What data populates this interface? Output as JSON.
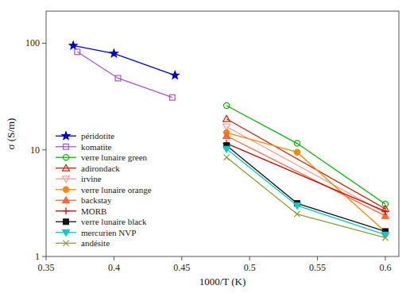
{
  "chart_data": {
    "type": "line",
    "xlabel": "1000/T (K)",
    "ylabel": "σ (S/m)",
    "xlim": [
      0.35,
      0.61
    ],
    "ylim": [
      1,
      200
    ],
    "xticks": [
      0.35,
      0.4,
      0.45,
      0.5,
      0.55,
      0.6
    ],
    "yticks": [
      1,
      10,
      100
    ],
    "log": "y",
    "grid": false,
    "legend": "lower left",
    "series": [
      {
        "name": "péridotite",
        "color": "#0000cc",
        "marker": "star",
        "x": [
          0.37,
          0.4,
          0.445
        ],
        "values": [
          95,
          80,
          50
        ]
      },
      {
        "name": "komatite",
        "color": "#aa55cc",
        "marker": "square-open",
        "x": [
          0.373,
          0.403,
          0.443
        ],
        "values": [
          83,
          47,
          31
        ]
      },
      {
        "name": "verre lunaire green",
        "color": "#00bb00",
        "marker": "circle-open",
        "x": [
          0.483,
          0.535,
          0.6
        ],
        "values": [
          26,
          11.5,
          3.1
        ]
      },
      {
        "name": "adirondack",
        "color": "#cc2200",
        "marker": "triangle-up-open",
        "x": [
          0.483,
          0.6
        ],
        "values": [
          19.5,
          2.8
        ]
      },
      {
        "name": "irvine",
        "color": "#ff9999",
        "marker": "triangle-down-open",
        "x": [
          0.483,
          0.6
        ],
        "values": [
          16.5,
          2.55
        ]
      },
      {
        "name": "verre lunaire orange",
        "color": "#ff8800",
        "marker": "circle",
        "x": [
          0.483,
          0.535,
          0.6
        ],
        "values": [
          14.5,
          9.5,
          1.7
        ]
      },
      {
        "name": "backstay",
        "color": "#ff6633",
        "marker": "triangle-up",
        "x": [
          0.483,
          0.6
        ],
        "values": [
          13.5,
          2.4
        ]
      },
      {
        "name": "MORB",
        "color": "#cc0000",
        "marker": "plus",
        "x": [
          0.483,
          0.6
        ],
        "values": [
          11.5,
          2.65
        ]
      },
      {
        "name": "verre lunaire black",
        "color": "#111111",
        "marker": "square",
        "x": [
          0.483,
          0.535,
          0.6
        ],
        "values": [
          11.0,
          3.15,
          1.72
        ]
      },
      {
        "name": "mercurien NVP",
        "color": "#00cccc",
        "marker": "triangle-down",
        "x": [
          0.483,
          0.535,
          0.6
        ],
        "values": [
          10.2,
          3.0,
          1.6
        ]
      },
      {
        "name": "andésite",
        "color": "#999933",
        "marker": "x",
        "x": [
          0.483,
          0.535,
          0.6
        ],
        "values": [
          8.5,
          2.5,
          1.5
        ]
      }
    ]
  }
}
